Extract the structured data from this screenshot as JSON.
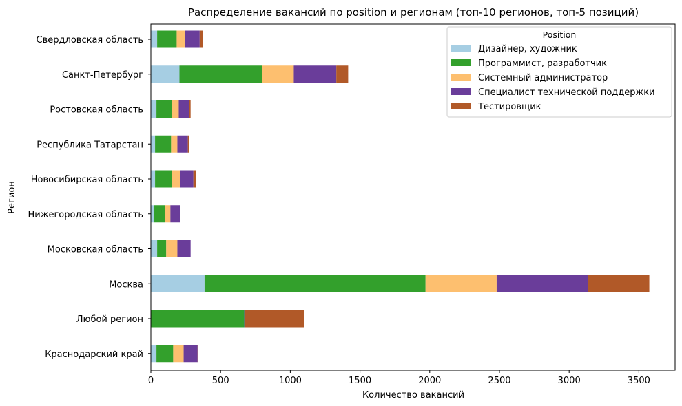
{
  "chart_data": {
    "type": "bar",
    "orientation": "horizontal",
    "stacked": true,
    "title": "Распределение вакансий по position и регионам (топ-10 регионов, топ-5 позиций)",
    "xlabel": "Количество вакансий",
    "ylabel": "Регион",
    "xlim": [
      0,
      3760
    ],
    "xticks": [
      "0",
      "500",
      "1000",
      "1500",
      "2000",
      "2500",
      "3000",
      "3500"
    ],
    "grid": false,
    "legend_title": "Position",
    "legend_position": "top-right",
    "categories": [
      "Краснодарский край",
      "Любой регион",
      "Москва",
      "Московская область",
      "Нижегородская область",
      "Новосибирская область",
      "Республика Татарстан",
      "Ростовская область",
      "Санкт-Петербург",
      "Свердловская область"
    ],
    "series": [
      {
        "name": "Дизайнер, художник",
        "color": "#a6cee3",
        "values": [
          40,
          0,
          385,
          45,
          20,
          30,
          30,
          40,
          205,
          45
        ]
      },
      {
        "name": "Программист, разработчик",
        "color": "#33a02c",
        "values": [
          120,
          670,
          1585,
          65,
          80,
          120,
          115,
          110,
          595,
          140
        ]
      },
      {
        "name": "Системный администратор",
        "color": "#fdbf6f",
        "values": [
          75,
          0,
          510,
          80,
          40,
          60,
          45,
          50,
          225,
          60
        ]
      },
      {
        "name": "Специалист технической поддержки",
        "color": "#6a3d9a",
        "values": [
          100,
          5,
          655,
          95,
          70,
          95,
          75,
          75,
          305,
          105
        ]
      },
      {
        "name": "Тестировщик",
        "color": "#b15928",
        "values": [
          5,
          425,
          440,
          0,
          0,
          20,
          10,
          10,
          85,
          25
        ]
      }
    ]
  }
}
